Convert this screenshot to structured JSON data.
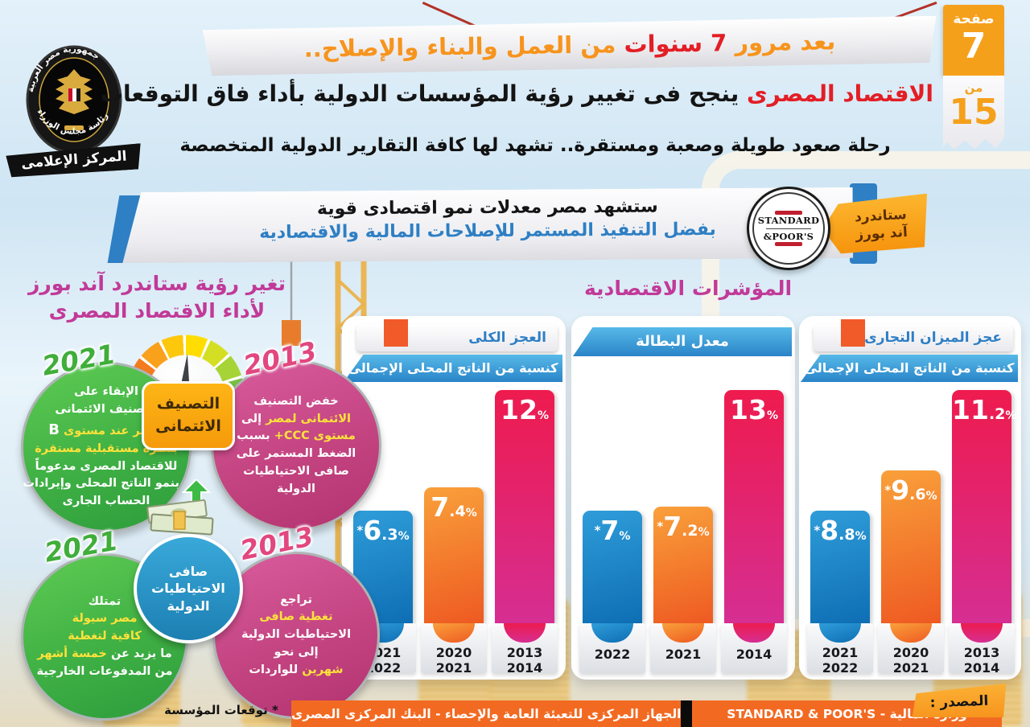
{
  "page_tab": {
    "page_label": "صفحة",
    "page_number": "7",
    "of_label": "من",
    "total": "15"
  },
  "logo": {
    "circle_top": "جمهورية مصر العربية",
    "circle_bottom": "رئاسة مجلس الوزراء",
    "ribbon": "المركز الإعلامى"
  },
  "top_banner": {
    "part1": "بعد مرور ",
    "highlight": "7 سنوات",
    "part2": " من العمل والبناء والإصلاح.."
  },
  "headline": {
    "highlight": "الاقتصاد المصرى",
    "rest": " ينجح فى تغيير رؤية المؤسسات الدولية بأداء فاق التوقعات"
  },
  "subheadline": "رحلة صعود طويلة وصعبة ومستقرة.. تشهد لها كافة التقارير الدولية المتخصصة",
  "quote": {
    "line1": "ستشهد مصر معدلات نمو اقتصادى قوية",
    "line2": "بفضل التنفيذ المستمر للإصلاحات المالية والاقتصادية",
    "sp_logo_line1": "STANDARD",
    "sp_logo_line2": "&POOR'S",
    "tag_line1": "ستاندرد",
    "tag_line2": "آند بورز"
  },
  "sp_view": {
    "title_line1": "تغير رؤية ستاندرد آند بورز",
    "title_line2": "لأداء الاقتصاد المصرى",
    "credit_badge_line1": "التصنيف",
    "credit_badge_line2": "الائتمانى",
    "rating": {
      "green_year": "2021",
      "pink_year": "2013",
      "green_lines": [
        [
          {
            "t": "الإبقاء على",
            "c": "w"
          }
        ],
        [
          {
            "t": "التصنيف الائتمانى",
            "c": "w"
          }
        ],
        [
          {
            "t": "لمصر عند مستوى ",
            "c": "y"
          },
          {
            "t": "B",
            "c": "wb"
          }
        ],
        [
          {
            "t": "بنظرة مستقبلية مستقرة",
            "c": "y"
          }
        ],
        [
          {
            "t": "للاقتصاد المصرى مدعوماً",
            "c": "w"
          }
        ],
        [
          {
            "t": "بنمو الناتج المحلى وإيرادات",
            "c": "w"
          }
        ],
        [
          {
            "t": "الحساب الجارى",
            "c": "w"
          }
        ]
      ],
      "pink_lines": [
        [
          {
            "t": "خفض التصنيف",
            "c": "w"
          }
        ],
        [
          {
            "t": "الائتمانى لمصر ",
            "c": "y"
          },
          {
            "t": "إلى",
            "c": "w"
          }
        ],
        [
          {
            "t": "مستوى CCC+ ",
            "c": "y"
          },
          {
            "t": "بسبب",
            "c": "w"
          }
        ],
        [
          {
            "t": "الضغط المستمر على",
            "c": "w"
          }
        ],
        [
          {
            "t": "صافى الاحتياطيات",
            "c": "w"
          }
        ],
        [
          {
            "t": "الدولية",
            "c": "w"
          }
        ]
      ]
    },
    "reserves": {
      "badge_line1": "صافى",
      "badge_line2": "الاحتياطيات",
      "badge_line3": "الدولية",
      "green_year": "2021",
      "pink_year": "2013",
      "green_lines": [
        [
          {
            "t": "تمتلك",
            "c": "w"
          }
        ],
        [
          {
            "t": "مصر سيولة",
            "c": "y"
          }
        ],
        [
          {
            "t": "كافية لتغطية",
            "c": "y"
          }
        ],
        [
          {
            "t": "ما يزيد عن ",
            "c": "w"
          },
          {
            "t": "خمسة أشهر",
            "c": "y"
          }
        ],
        [
          {
            "t": "من المدفوعات الخارجية",
            "c": "w"
          }
        ]
      ],
      "pink_lines": [
        [
          {
            "t": "تراجع",
            "c": "w"
          }
        ],
        [
          {
            "t": "تغطية صافى",
            "c": "y"
          }
        ],
        [
          {
            "t": "الاحتياطيات الدولية",
            "c": "w"
          }
        ],
        [
          {
            "t": "إلى نحو",
            "c": "w"
          }
        ],
        [
          {
            "t": "شهرين ",
            "c": "y"
          },
          {
            "t": "للواردات",
            "c": "w"
          }
        ]
      ]
    }
  },
  "indicators": {
    "title": "المؤشرات الاقتصادية"
  },
  "chart_data": [
    {
      "type": "bar",
      "title": "العجز الكلى",
      "subtitle": "كنسبة من الناتج المحلى الإجمالى",
      "unit": "%",
      "categories": [
        [
          "2021",
          "2022"
        ],
        [
          "2020",
          "2021"
        ],
        [
          "2013",
          "2014"
        ]
      ],
      "values": [
        6.3,
        7.4,
        12
      ],
      "starred": [
        true,
        false,
        false
      ],
      "colors": [
        "#1583c9",
        "#f47b20",
        "#e31e4f"
      ],
      "ylim": [
        0,
        13
      ],
      "legend_position": "none"
    },
    {
      "type": "bar",
      "title": "معدل البطالة",
      "subtitle": "",
      "unit": "%",
      "categories": [
        [
          "2022"
        ],
        [
          "2021"
        ],
        [
          "2014"
        ]
      ],
      "values": [
        7,
        7.2,
        13
      ],
      "starred": [
        true,
        true,
        false
      ],
      "colors": [
        "#1583c9",
        "#f47b20",
        "#e31e4f"
      ],
      "ylim": [
        0,
        14
      ],
      "legend_position": "none"
    },
    {
      "type": "bar",
      "title": "عجز الميزان التجارى",
      "subtitle": "كنسبة من الناتج المحلى الإجمالى",
      "unit": "%",
      "categories": [
        [
          "2021",
          "2022"
        ],
        [
          "2020",
          "2021"
        ],
        [
          "2013",
          "2014"
        ]
      ],
      "values": [
        8.8,
        9.6,
        11.2
      ],
      "starred": [
        true,
        true,
        false
      ],
      "colors": [
        "#1583c9",
        "#f47b20",
        "#e31e4f"
      ],
      "ylim": [
        0,
        12
      ],
      "legend_position": "none"
    }
  ],
  "footnote": "* توقعات المؤسسة",
  "source": {
    "label": "المصدر :",
    "right_text": "وزارة المالية - STANDARD & POOR'S",
    "left_text": "الجهاز المركزى للتعبئة العامة والإحصاء - البنك المركزى المصرى"
  }
}
